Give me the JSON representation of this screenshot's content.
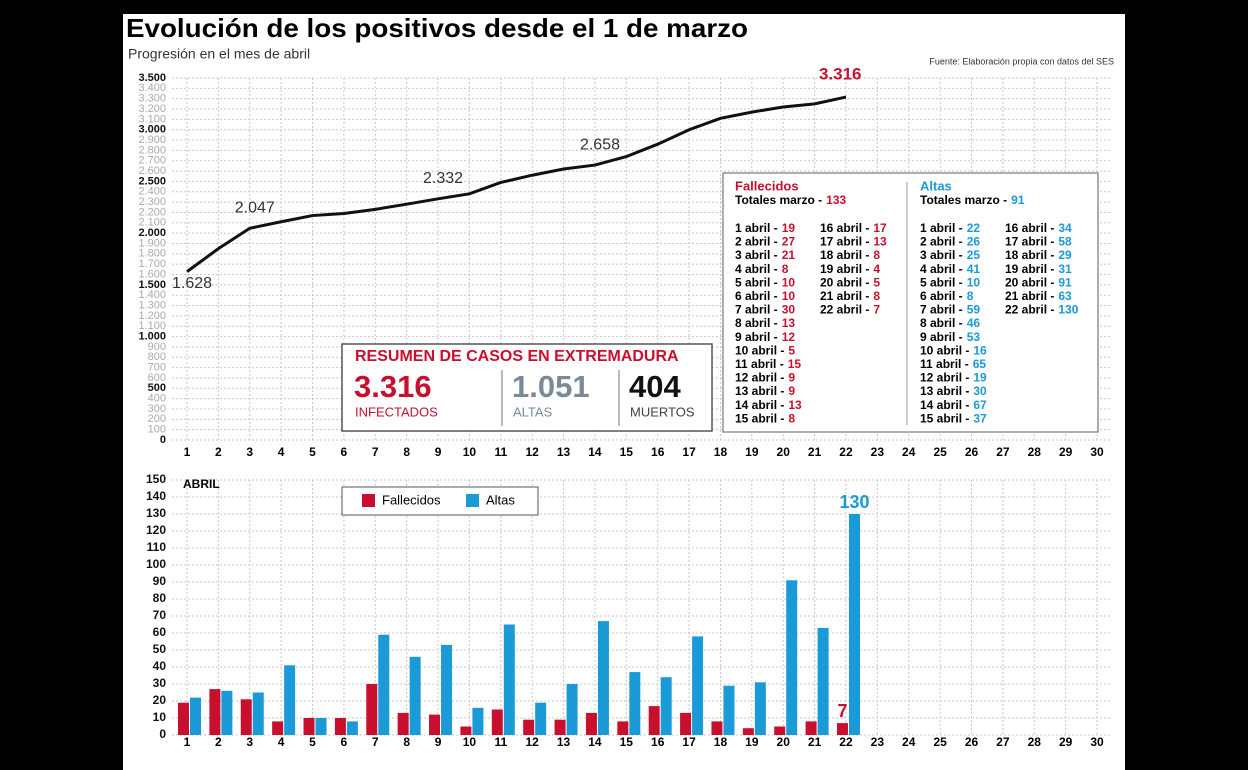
{
  "header": {
    "title": "Evolución de los positivos desde el 1 de marzo",
    "subtitle": "Progresión en el mes de abril",
    "source": "Fuente: Elaboración propia con datos del SES"
  },
  "chart_data": [
    {
      "type": "line",
      "categories": [
        "1",
        "2",
        "3",
        "4",
        "5",
        "6",
        "7",
        "8",
        "9",
        "10",
        "11",
        "12",
        "13",
        "14",
        "15",
        "16",
        "17",
        "18",
        "19",
        "20",
        "21",
        "22",
        "23",
        "24",
        "25",
        "26",
        "27",
        "28",
        "29",
        "30"
      ],
      "values": [
        1628,
        1850,
        2047,
        2110,
        2170,
        2190,
        2230,
        2280,
        2332,
        2380,
        2490,
        2560,
        2620,
        2658,
        2740,
        2860,
        3000,
        3110,
        3170,
        3220,
        3250,
        3316,
        null,
        null,
        null,
        null,
        null,
        null,
        null,
        null
      ],
      "value_labels": [
        "1.628",
        null,
        "2.047",
        null,
        null,
        null,
        null,
        null,
        "2.332",
        null,
        null,
        null,
        null,
        "2.658",
        null,
        null,
        null,
        null,
        null,
        null,
        null,
        "3.316",
        null,
        null,
        null,
        null,
        null,
        null,
        null,
        null
      ],
      "color": "#111111",
      "highlight_color": "#c8102e",
      "grid": true,
      "ylim": [
        0,
        3500
      ],
      "yticks": [
        0,
        100,
        200,
        300,
        400,
        500,
        600,
        700,
        800,
        900,
        {
          "value": 1000,
          "label": "1.000"
        },
        {
          "value": 1100,
          "label": "1.100"
        },
        {
          "value": 1200,
          "label": "1.200"
        },
        {
          "value": 1300,
          "label": "1.300"
        },
        {
          "value": 1400,
          "label": "1.400"
        },
        {
          "value": 1500,
          "label": "1.500"
        },
        {
          "value": 1600,
          "label": "1.600"
        },
        {
          "value": 1700,
          "label": "1.700"
        },
        {
          "value": 1800,
          "label": "1.800"
        },
        {
          "value": 1900,
          "label": "1.900"
        },
        {
          "value": 2000,
          "label": "2.000"
        },
        {
          "value": 2100,
          "label": "2.100"
        },
        {
          "value": 2200,
          "label": "2.200"
        },
        {
          "value": 2300,
          "label": "2.300"
        },
        {
          "value": 2400,
          "label": "2.400"
        },
        {
          "value": 2500,
          "label": "2.500"
        },
        {
          "value": 2600,
          "label": "2.600"
        },
        {
          "value": 2700,
          "label": "2.700"
        },
        {
          "value": 2800,
          "label": "2.800"
        },
        {
          "value": 2900,
          "label": "2.900"
        },
        {
          "value": 3000,
          "label": "3.000"
        },
        {
          "value": 3100,
          "label": "3.100"
        },
        {
          "value": 3200,
          "label": "3.200"
        },
        {
          "value": 3300,
          "label": "3.300"
        },
        {
          "value": 3400,
          "label": "3.400"
        },
        {
          "value": 3500,
          "label": "3.500"
        }
      ]
    },
    {
      "type": "bar",
      "annotation": "ABRIL",
      "categories": [
        "1",
        "2",
        "3",
        "4",
        "5",
        "6",
        "7",
        "8",
        "9",
        "10",
        "11",
        "12",
        "13",
        "14",
        "15",
        "16",
        "17",
        "18",
        "19",
        "20",
        "21",
        "22",
        "23",
        "24",
        "25",
        "26",
        "27",
        "28",
        "29",
        "30"
      ],
      "series": [
        {
          "name": "Fallecidos",
          "color": "#c8102e",
          "values": [
            19,
            27,
            21,
            8,
            10,
            10,
            30,
            13,
            12,
            5,
            15,
            9,
            9,
            13,
            8,
            17,
            13,
            8,
            4,
            5,
            8,
            7,
            null,
            null,
            null,
            null,
            null,
            null,
            null,
            null
          ],
          "value_labels": [
            null,
            null,
            null,
            null,
            null,
            null,
            null,
            null,
            null,
            null,
            null,
            null,
            null,
            null,
            null,
            null,
            null,
            null,
            null,
            null,
            null,
            "7",
            null,
            null,
            null,
            null,
            null,
            null,
            null,
            null
          ]
        },
        {
          "name": "Altas",
          "color": "#1a9ad6",
          "values": [
            22,
            26,
            25,
            41,
            10,
            8,
            59,
            46,
            53,
            16,
            65,
            19,
            30,
            67,
            37,
            34,
            58,
            29,
            31,
            91,
            63,
            130,
            null,
            null,
            null,
            null,
            null,
            null,
            null,
            null
          ],
          "value_labels": [
            null,
            null,
            null,
            null,
            null,
            null,
            null,
            null,
            null,
            null,
            null,
            null,
            null,
            null,
            null,
            null,
            null,
            null,
            null,
            null,
            null,
            "130",
            null,
            null,
            null,
            null,
            null,
            null,
            null,
            null
          ]
        }
      ],
      "grid": true,
      "ylim": [
        0,
        150
      ],
      "yticks": [
        0,
        10,
        20,
        30,
        40,
        50,
        60,
        70,
        80,
        90,
        100,
        110,
        120,
        130,
        140,
        150
      ]
    }
  ],
  "summary": {
    "title": "RESUMEN DE CASOS EN EXTREMADURA",
    "items": [
      {
        "value": "3.316",
        "label": "INFECTADOS"
      },
      {
        "value": "1.051",
        "label": "ALTAS"
      },
      {
        "value": "404",
        "label": "MUERTOS"
      }
    ]
  },
  "table": {
    "fallecidos": {
      "title": "Fallecidos",
      "totals_label": "Totales marzo -",
      "totals_value": 133
    },
    "altas": {
      "title": "Altas",
      "totals_label": "Totales marzo -",
      "totals_value": 91
    },
    "rows": [
      "1 abril -",
      "2 abril -",
      "3 abril -",
      "4 abril -",
      "5 abril -",
      "6 abril -",
      "7 abril -",
      "8 abril -",
      "9 abril -",
      "10 abril -",
      "11 abril -",
      "12 abril -",
      "13 abril -",
      "14 abril -",
      "15 abril -",
      "16 abril -",
      "17 abril -",
      "18 abril -",
      "19 abril -",
      "20 abril -",
      "21 abril -",
      "22 abril -"
    ]
  }
}
